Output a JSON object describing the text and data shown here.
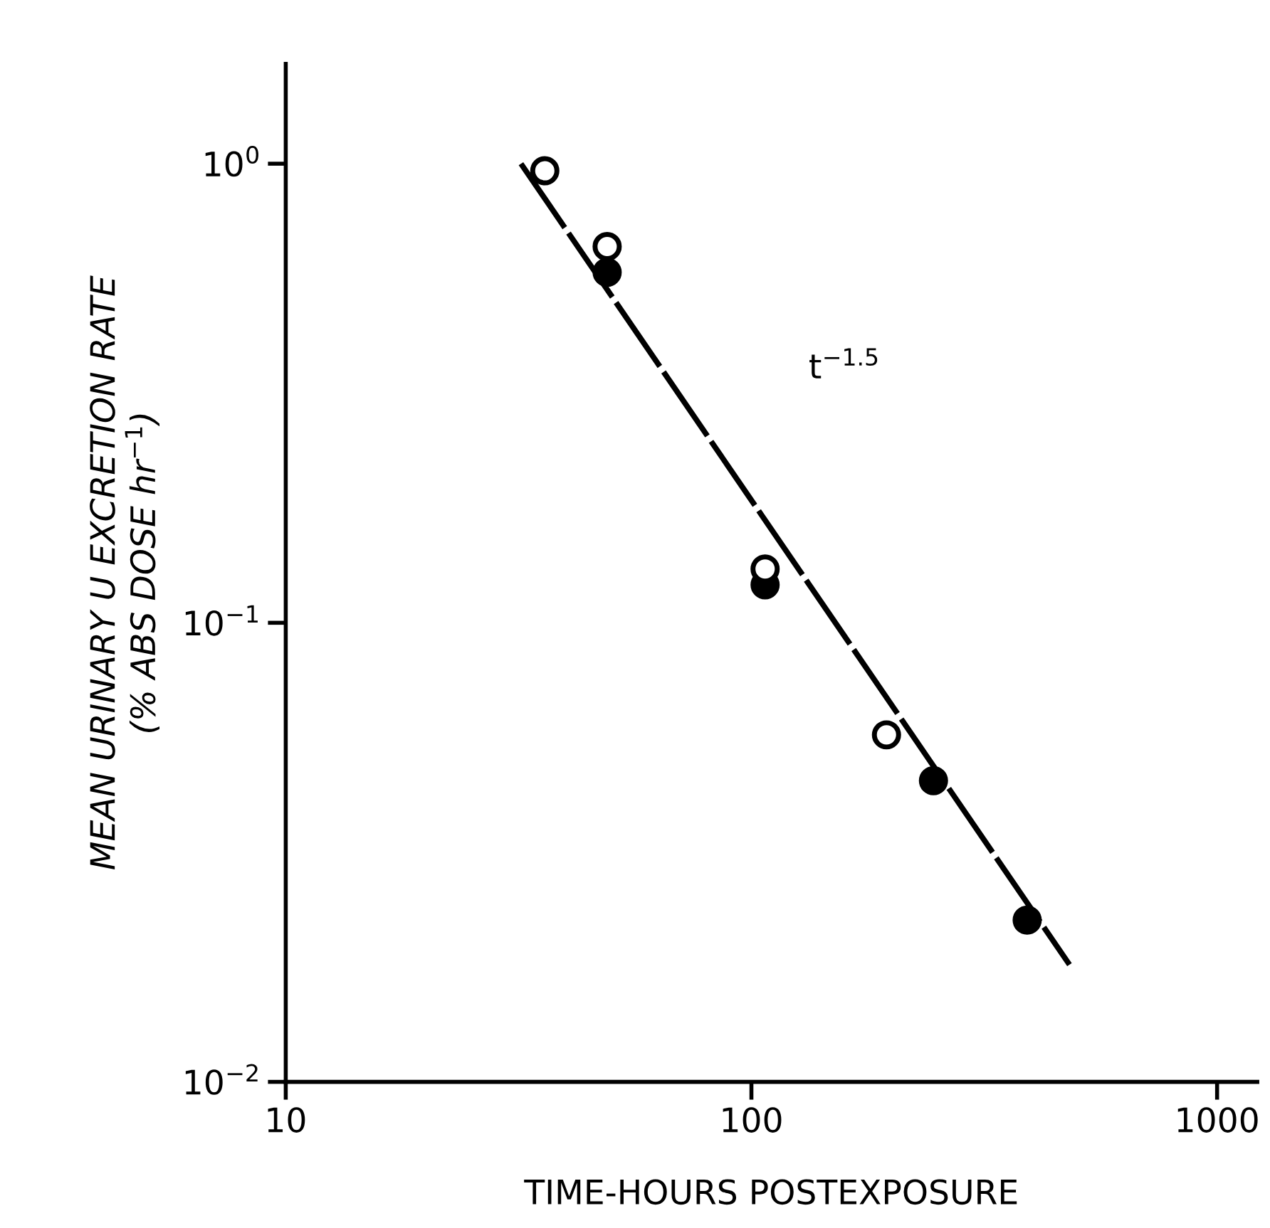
{
  "chart_data": {
    "type": "scatter",
    "xlabel": "TIME-HOURS POSTEXPOSURE",
    "ylabel": "MEAN URINARY U EXCRETION RATE\n(% ABS DOSE hr$^{−1}$)",
    "log": "xy",
    "xlim": [
      10,
      1220
    ],
    "ylim": [
      0.01,
      1.65
    ],
    "xticks": [
      10,
      100,
      1000
    ],
    "yticks": [
      {
        "value": 0.01,
        "label": "10$^{−2}$"
      },
      {
        "value": 0.1,
        "label": "10$^{−1}$"
      },
      {
        "value": 1,
        "label": "10$^{0}$"
      }
    ],
    "grid": false,
    "marker": "circle",
    "series": [
      {
        "type": "line",
        "color": "#000000",
        "line_style": "dashed",
        "marker": "none",
        "x": [
          32,
          482
        ],
        "values": [
          1.0,
          0.018
        ]
      },
      {
        "color": "#ffffff",
        "x": [
          36,
          49,
          107,
          195
        ],
        "values": [
          0.965,
          0.66,
          0.131,
          0.057
        ]
      },
      {
        "color": "#000000",
        "x": [
          49,
          107,
          246,
          391
        ],
        "values": [
          0.58,
          0.121,
          0.0453,
          0.0225
        ]
      }
    ],
    "annotations": [
      "t$^{−1.5}$"
    ]
  }
}
